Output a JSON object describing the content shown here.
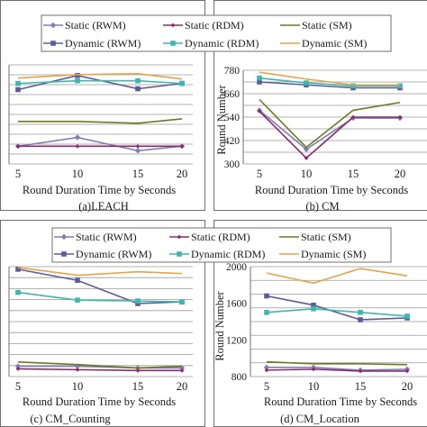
{
  "colors": {
    "static_rwm": "#7f7fb4",
    "static_rdm": "#8a2c6c",
    "static_sm": "#6b7a22",
    "dynamic_rwm": "#5c5c98",
    "dynamic_rdm": "#3fb7ad",
    "dynamic_sm": "#e3a44a",
    "grid": "#9a9a9a",
    "frame": "#6f6f6f"
  },
  "legend_top": {
    "row1": [
      "Static (RWM)",
      "Static (RDM)",
      "Static (SM)"
    ],
    "row2": [
      "Dynamic (RWM)",
      "Dynamic (RDM)",
      "Dynamic (SM)"
    ]
  },
  "legend_bottom": {
    "row1": [
      "Static (RWM)",
      "Static (RDM)",
      "Static (SM)"
    ],
    "row2": [
      "Dynamic (RWM)",
      "Dynamic (RDM)",
      "Dynamic (SM)"
    ]
  },
  "chart_data": [
    {
      "type": "line",
      "caption": "(a)LEACH",
      "xlabel": "Round Duration Time by Seconds",
      "ylabel": "",
      "x": [
        5,
        10,
        15,
        20
      ],
      "ylim": [
        100,
        660
      ],
      "yticks": [],
      "series": [
        {
          "name": "Static (RWM)",
          "values": [
            200,
            250,
            175,
            200
          ]
        },
        {
          "name": "Static (RDM)",
          "values": [
            200,
            200,
            200,
            200
          ]
        },
        {
          "name": "Static (SM)",
          "values": [
            340,
            340,
            330,
            355
          ]
        },
        {
          "name": "Dynamic (RWM)",
          "values": [
            520,
            600,
            525,
            555
          ]
        },
        {
          "name": "Dynamic (RDM)",
          "values": [
            555,
            570,
            570,
            555
          ]
        },
        {
          "name": "Dynamic (SM)",
          "values": [
            585,
            605,
            610,
            580
          ]
        }
      ]
    },
    {
      "type": "line",
      "caption": "(b) CM",
      "xlabel": "Round Duration Time by Seconds",
      "ylabel": "Round Number",
      "x": [
        5,
        10,
        15,
        20
      ],
      "ylim": [
        300,
        780
      ],
      "yticks": [
        "300",
        "420",
        "540",
        "660",
        "780"
      ],
      "series": [
        {
          "name": "Static (RWM)",
          "values": [
            575,
            375,
            535,
            535
          ]
        },
        {
          "name": "Static (RDM)",
          "values": [
            570,
            330,
            540,
            540
          ]
        },
        {
          "name": "Static (SM)",
          "values": [
            630,
            385,
            575,
            615
          ]
        },
        {
          "name": "Dynamic (RWM)",
          "values": [
            720,
            705,
            690,
            690
          ]
        },
        {
          "name": "Dynamic (RDM)",
          "values": [
            740,
            715,
            700,
            700
          ]
        },
        {
          "name": "Dynamic (SM)",
          "values": [
            770,
            735,
            705,
            705
          ]
        }
      ]
    },
    {
      "type": "line",
      "caption": "(c) CM_Counting",
      "xlabel": "Round Duration Time by Seconds",
      "ylabel": "",
      "x": [
        5,
        10,
        15,
        20
      ],
      "ylim": [
        780,
        2060
      ],
      "yticks": [],
      "series": [
        {
          "name": "Static (RWM)",
          "values": [
            900,
            900,
            880,
            880
          ]
        },
        {
          "name": "Static (RDM)",
          "values": [
            870,
            860,
            850,
            850
          ]
        },
        {
          "name": "Static (SM)",
          "values": [
            950,
            920,
            880,
            900
          ]
        },
        {
          "name": "Dynamic (RWM)",
          "values": [
            2030,
            1900,
            1630,
            1650
          ]
        },
        {
          "name": "Dynamic (RDM)",
          "values": [
            1760,
            1670,
            1660,
            1650
          ]
        },
        {
          "name": "Dynamic (SM)",
          "values": [
            2050,
            1960,
            2000,
            1980
          ]
        }
      ]
    },
    {
      "type": "line",
      "caption": "(d) CM_Location",
      "xlabel": "Round Duration Time by Seconds",
      "ylabel": "Round Number",
      "x": [
        5,
        10,
        15,
        20
      ],
      "ylim": [
        800,
        2000
      ],
      "yticks": [
        "800",
        "1200",
        "1600",
        "2000"
      ],
      "series": [
        {
          "name": "Static (RWM)",
          "values": [
            900,
            900,
            870,
            880
          ]
        },
        {
          "name": "Static (RDM)",
          "values": [
            870,
            880,
            860,
            860
          ]
        },
        {
          "name": "Static (SM)",
          "values": [
            960,
            940,
            940,
            930
          ]
        },
        {
          "name": "Dynamic (RWM)",
          "values": [
            1680,
            1580,
            1420,
            1440
          ]
        },
        {
          "name": "Dynamic (RDM)",
          "values": [
            1500,
            1540,
            1500,
            1460
          ]
        },
        {
          "name": "Dynamic (SM)",
          "values": [
            1930,
            1820,
            1980,
            1900
          ]
        }
      ]
    }
  ]
}
